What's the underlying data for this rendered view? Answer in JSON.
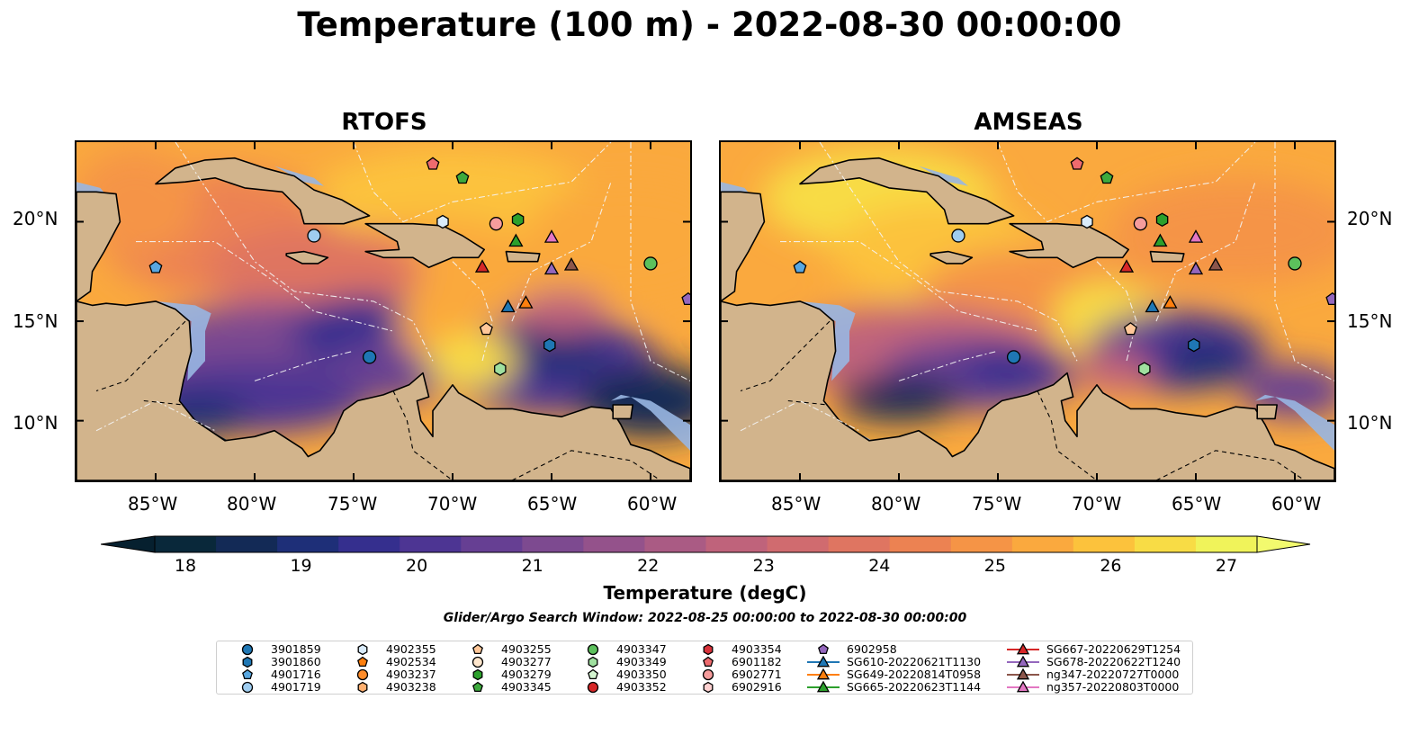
{
  "title": "Temperature (100 m) - 2022-08-30 00:00:00",
  "panels": [
    {
      "title": "RTOFS",
      "model": "rtofs"
    },
    {
      "title": "AMSEAS",
      "model": "amseas"
    }
  ],
  "map_extent": {
    "lon": [
      -89,
      -58
    ],
    "lat": [
      7,
      24
    ]
  },
  "x_ticks": [
    "85°W",
    "80°W",
    "75°W",
    "70°W",
    "65°W",
    "60°W"
  ],
  "y_ticks_left": [
    "20°N",
    "15°N",
    "10°N"
  ],
  "y_ticks_right": [
    "20°N",
    "15°N",
    "10°N"
  ],
  "colorbar": {
    "ticks": [
      "18",
      "19",
      "20",
      "21",
      "22",
      "23",
      "24",
      "25",
      "26",
      "27"
    ],
    "label": "Temperature (degC)",
    "range": [
      18,
      27
    ],
    "colors": [
      "#09283a",
      "#132a56",
      "#1e2f78",
      "#352f8e",
      "#4d3593",
      "#663f93",
      "#7d4a90",
      "#94528b",
      "#aa5b84",
      "#bf637b",
      "#d06b6f",
      "#df7561",
      "#ec8252",
      "#f59446",
      "#faa93e",
      "#fcc23c",
      "#f8dc45",
      "#f0f35a"
    ],
    "land": "#d2b48c",
    "water": "#98b6e2"
  },
  "search_window": "Glider/Argo Search Window: 2022-08-25 00:00:00 to 2022-08-30 00:00:00",
  "legend": [
    {
      "label": "3901859",
      "marker": "circle",
      "color": "#1f77b4"
    },
    {
      "label": "3901860",
      "marker": "hexagon",
      "color": "#1f77b4"
    },
    {
      "label": "4901716",
      "marker": "pentagon",
      "color": "#58a7e0"
    },
    {
      "label": "4901719",
      "marker": "circle",
      "color": "#9fcdf0"
    },
    {
      "label": "4902355",
      "marker": "hexagon",
      "color": "#d9ebfa"
    },
    {
      "label": "4902534",
      "marker": "pentagon",
      "color": "#ff7f0e"
    },
    {
      "label": "4903237",
      "marker": "circle",
      "color": "#ff8c2a"
    },
    {
      "label": "4903238",
      "marker": "hexagon",
      "color": "#ffb070"
    },
    {
      "label": "4903255",
      "marker": "pentagon",
      "color": "#ffc799"
    },
    {
      "label": "4903277",
      "marker": "circle",
      "color": "#ffe6cc"
    },
    {
      "label": "4903279",
      "marker": "hexagon",
      "color": "#2ca02c"
    },
    {
      "label": "4903345",
      "marker": "pentagon",
      "color": "#3daa3d"
    },
    {
      "label": "4903347",
      "marker": "circle",
      "color": "#5cc05c"
    },
    {
      "label": "4903349",
      "marker": "hexagon",
      "color": "#9fe09f"
    },
    {
      "label": "4903350",
      "marker": "pentagon",
      "color": "#d4f5d0"
    },
    {
      "label": "4903352",
      "marker": "circle",
      "color": "#d62728"
    },
    {
      "label": "4903354",
      "marker": "hexagon",
      "color": "#d8323a"
    },
    {
      "label": "6901182",
      "marker": "pentagon",
      "color": "#ee6b6e"
    },
    {
      "label": "6902771",
      "marker": "circle",
      "color": "#f59c9c"
    },
    {
      "label": "6902916",
      "marker": "hexagon",
      "color": "#fdd0d0"
    },
    {
      "label": "6902958",
      "marker": "pentagon",
      "color": "#9467bd"
    },
    {
      "label": "SG610-20220621T1130",
      "marker": "triangle-line",
      "color": "#1f77b4"
    },
    {
      "label": "SG649-20220814T0958",
      "marker": "triangle-line",
      "color": "#ff7f0e"
    },
    {
      "label": "SG665-20220623T1144",
      "marker": "triangle-line",
      "color": "#2ca02c"
    },
    {
      "label": "SG667-20220629T1254",
      "marker": "triangle-line",
      "color": "#d62728"
    },
    {
      "label": "SG678-20220622T1240",
      "marker": "triangle-line",
      "color": "#9467bd"
    },
    {
      "label": "ng347-20220727T0000",
      "marker": "triangle-line",
      "color": "#8c564b"
    },
    {
      "label": "ng357-20220803T0000",
      "marker": "triangle-line",
      "color": "#e377c2"
    }
  ],
  "observations": [
    {
      "id": "3901859",
      "lon": -74.2,
      "lat": 13.2
    },
    {
      "id": "3901860",
      "lon": -65.1,
      "lat": 13.8
    },
    {
      "id": "4901716",
      "lon": -85.0,
      "lat": 17.7
    },
    {
      "id": "4901719",
      "lon": -77.0,
      "lat": 19.3
    },
    {
      "id": "4902355",
      "lon": -70.5,
      "lat": 20.0
    },
    {
      "id": "4903255",
      "lon": -68.3,
      "lat": 14.6
    },
    {
      "id": "4903279",
      "lon": -66.7,
      "lat": 20.1
    },
    {
      "id": "4903345",
      "lon": -69.5,
      "lat": 22.2
    },
    {
      "id": "4903347",
      "lon": -60.0,
      "lat": 17.9
    },
    {
      "id": "4903349",
      "lon": -67.6,
      "lat": 12.6
    },
    {
      "id": "6901182",
      "lon": -71.0,
      "lat": 22.9
    },
    {
      "id": "6902771",
      "lon": -67.8,
      "lat": 19.9
    },
    {
      "id": "6902958",
      "lon": -58.1,
      "lat": 16.1
    },
    {
      "id": "SG610-20220621T1130",
      "lon": -67.2,
      "lat": 15.7
    },
    {
      "id": "SG649-20220814T0958",
      "lon": -66.3,
      "lat": 15.9
    },
    {
      "id": "SG665-20220623T1144",
      "lon": -66.8,
      "lat": 19.0
    },
    {
      "id": "SG667-20220629T1254",
      "lon": -68.5,
      "lat": 17.7
    },
    {
      "id": "SG678-20220622T1240",
      "lon": -65.0,
      "lat": 17.6
    },
    {
      "id": "ng347-20220727T0000",
      "lon": -64.0,
      "lat": 17.8
    },
    {
      "id": "ng357-20220803T0000",
      "lon": -65.0,
      "lat": 19.2
    }
  ]
}
